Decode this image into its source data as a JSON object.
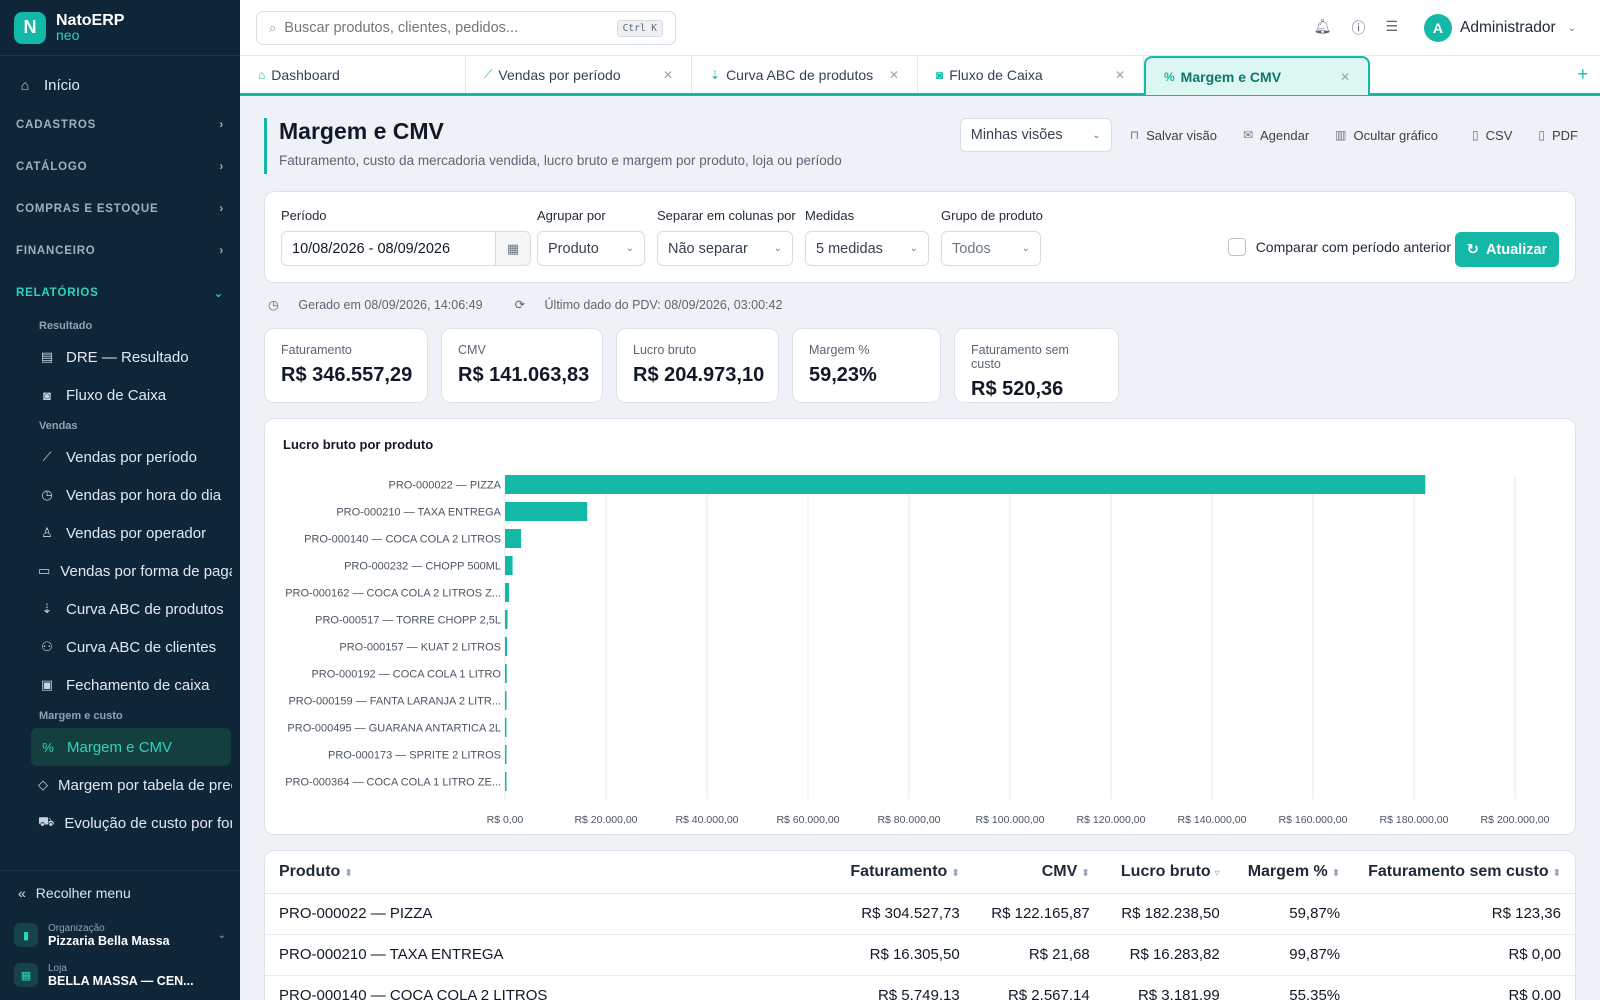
{
  "brand": {
    "name": "NatoERP",
    "sub": "neo",
    "logo_letter": "N"
  },
  "sidebar": {
    "home": "Início",
    "sections": [
      {
        "label": "CADASTROS"
      },
      {
        "label": "CATÁLOGO"
      },
      {
        "label": "COMPRAS E ESTOQUE"
      },
      {
        "label": "FINANCEIRO"
      }
    ],
    "reports_label": "RELATÓRIOS",
    "groups": [
      {
        "title": "Resultado",
        "items": [
          {
            "label": "DRE — Resultado",
            "icon": "wallet-icon"
          },
          {
            "label": "Fluxo de Caixa",
            "icon": "cash-icon"
          }
        ]
      },
      {
        "title": "Vendas",
        "items": [
          {
            "label": "Vendas por período",
            "icon": "line-chart-icon"
          },
          {
            "label": "Vendas por hora do dia",
            "icon": "clock-icon"
          },
          {
            "label": "Vendas por operador",
            "icon": "user-icon"
          },
          {
            "label": "Vendas por forma de pagamento",
            "icon": "card-icon"
          },
          {
            "label": "Curva ABC de produtos",
            "icon": "sort-icon"
          },
          {
            "label": "Curva ABC de clientes",
            "icon": "users-icon"
          },
          {
            "label": "Fechamento de caixa",
            "icon": "register-icon"
          }
        ]
      },
      {
        "title": "Margem e custo",
        "items": [
          {
            "label": "Margem e CMV",
            "icon": "percent-icon"
          },
          {
            "label": "Margem por tabela de preço",
            "icon": "tag-icon"
          },
          {
            "label": "Evolução de custo por fornecedor",
            "icon": "truck-icon"
          }
        ]
      }
    ],
    "collapse": "Recolher menu",
    "org_label": "Organização",
    "org_value": "Pizzaria Bella Massa",
    "store_label": "Loja",
    "store_value": "BELLA MASSA — CEN..."
  },
  "topbar": {
    "search_placeholder": "Buscar produtos, clientes, pedidos...",
    "shortcut": "Ctrl K",
    "user_initial": "A",
    "user_name": "Administrador"
  },
  "tabs": [
    {
      "label": "Dashboard",
      "closable": false
    },
    {
      "label": "Vendas por período",
      "closable": true
    },
    {
      "label": "Curva ABC de produtos",
      "closable": true
    },
    {
      "label": "Fluxo de Caixa",
      "closable": true
    },
    {
      "label": "Margem e CMV",
      "closable": true,
      "active": true
    }
  ],
  "page": {
    "title": "Margem e CMV",
    "description": "Faturamento, custo da mercadoria vendida, lucro bruto e margem por produto, loja ou período",
    "views_select": "Minhas visões",
    "actions": {
      "save": "Salvar visão",
      "schedule": "Agendar",
      "hide_chart": "Ocultar gráfico",
      "csv": "CSV",
      "pdf": "PDF"
    }
  },
  "filters": {
    "period_label": "Período",
    "period_value": "10/08/2026 - 08/09/2026",
    "group_label": "Agrupar por",
    "group_value": "Produto",
    "split_label": "Separar em colunas por",
    "split_value": "Não separar",
    "measures_label": "Medidas",
    "measures_value": "5 medidas",
    "product_group_label": "Grupo de produto",
    "product_group_value": "Todos",
    "compare_label": "Comparar com período anterior",
    "update_button": "Atualizar"
  },
  "meta": {
    "generated": "Gerado em 08/09/2026, 14:06:49",
    "last_pdv": "Último dado do PDV: 08/09/2026, 03:00:42"
  },
  "kpis": [
    {
      "label": "Faturamento",
      "value": "R$ 346.557,29"
    },
    {
      "label": "CMV",
      "value": "R$ 141.063,83"
    },
    {
      "label": "Lucro bruto",
      "value": "R$ 204.973,10"
    },
    {
      "label": "Margem %",
      "value": "59,23%"
    },
    {
      "label": "Faturamento sem custo",
      "value": "R$ 520,36"
    }
  ],
  "chart_data": {
    "type": "bar",
    "orientation": "horizontal",
    "title": "Lucro bruto por produto",
    "color": "#14b8a6",
    "categories": [
      "PRO-000022 — PIZZA",
      "PRO-000210 — TAXA ENTREGA",
      "PRO-000140 — COCA COLA 2 LITROS",
      "PRO-000232 — CHOPP 500ML",
      "PRO-000162 — COCA COLA 2 LITROS Z...",
      "PRO-000517 — TORRE CHOPP 2,5L",
      "PRO-000157 — KUAT 2 LITROS",
      "PRO-000192 — COCA COLA 1 LITRO",
      "PRO-000159 — FANTA LARANJA 2 LITR...",
      "PRO-000495 — GUARANA ANTARTICA 2L",
      "PRO-000173 — SPRITE 2 LITROS",
      "PRO-000364 — COCA COLA 1 LITRO ZE..."
    ],
    "values": [
      182238.5,
      16283.82,
      3181.99,
      1500,
      800,
      500,
      400,
      350,
      300,
      250,
      200,
      150
    ],
    "xlim": [
      0,
      200000
    ],
    "xticks": [
      "R$ 0,00",
      "R$ 20.000,00",
      "R$ 40.000,00",
      "R$ 60.000,00",
      "R$ 80.000,00",
      "R$ 100.000,00",
      "R$ 120.000,00",
      "R$ 140.000,00",
      "R$ 160.000,00",
      "R$ 180.000,00",
      "R$ 200.000,00"
    ],
    "grid": true
  },
  "table": {
    "columns": [
      "Produto",
      "Faturamento",
      "CMV",
      "Lucro bruto",
      "Margem %",
      "Faturamento sem custo"
    ],
    "rows": [
      [
        "PRO-000022 — PIZZA",
        "R$ 304.527,73",
        "R$ 122.165,87",
        "R$ 182.238,50",
        "59,87%",
        "R$ 123,36"
      ],
      [
        "PRO-000210 — TAXA ENTREGA",
        "R$ 16.305,50",
        "R$ 21,68",
        "R$ 16.283,82",
        "99,87%",
        "R$ 0,00"
      ],
      [
        "PRO-000140 — COCA COLA 2 LITROS",
        "R$ 5.749,13",
        "R$ 2.567,14",
        "R$ 3.181,99",
        "55,35%",
        "R$ 0,00"
      ]
    ]
  }
}
